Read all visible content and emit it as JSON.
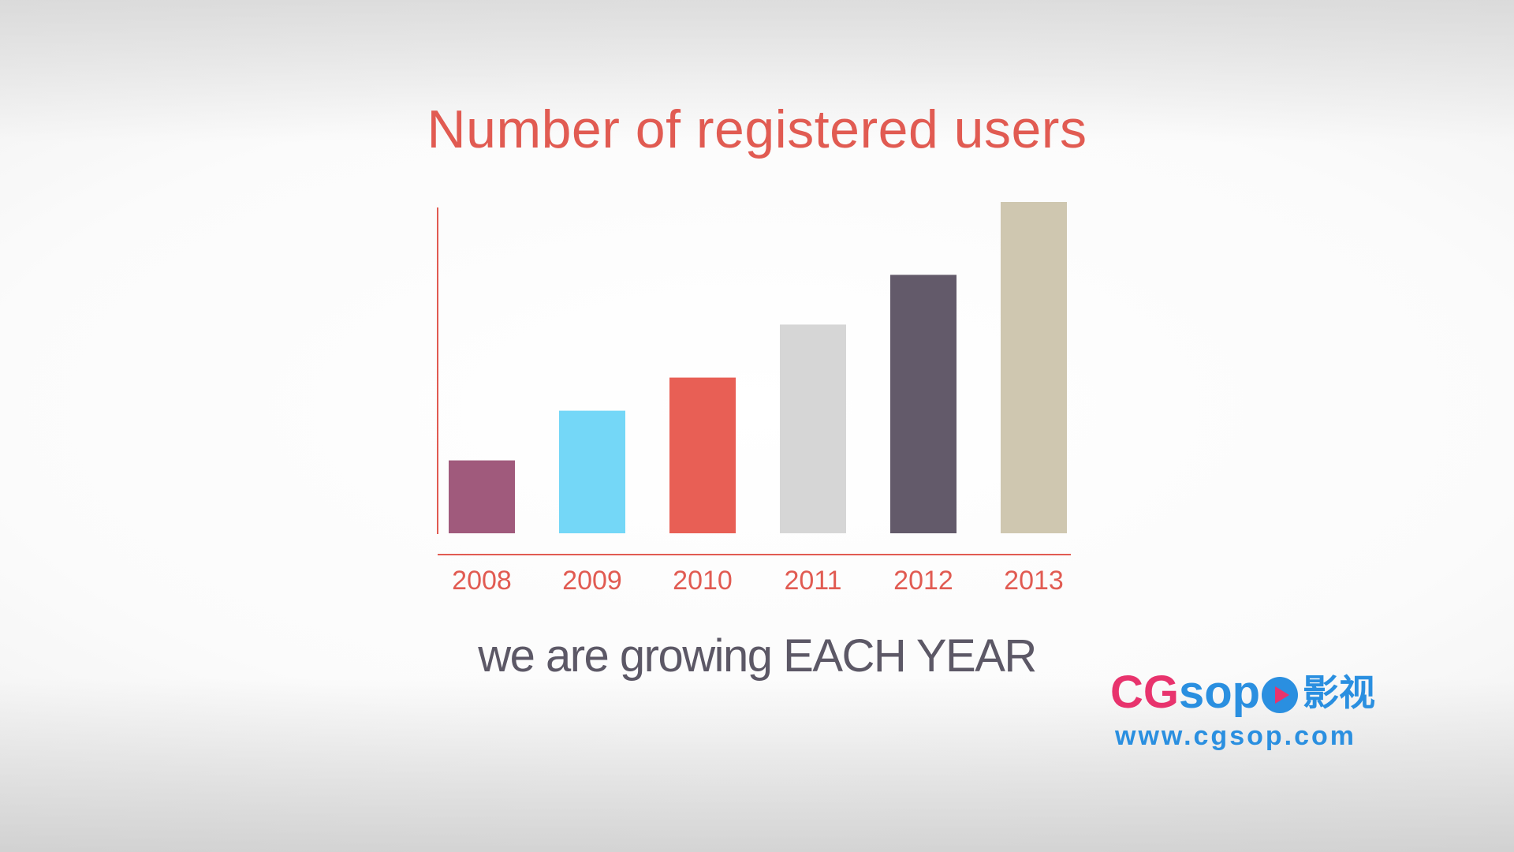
{
  "chart_data": {
    "type": "bar",
    "title": "Number of registered users",
    "categories": [
      "2008",
      "2009",
      "2010",
      "2011",
      "2012",
      "2013"
    ],
    "values": [
      22,
      37,
      47,
      63,
      78,
      100
    ],
    "colors": [
      "#a05a7c",
      "#74d7f7",
      "#e85f55",
      "#d6d6d6",
      "#635a6a",
      "#cfc7b0"
    ],
    "axis_color": "#e15b52",
    "ylim": [
      0,
      100
    ],
    "grid": false,
    "legend": "none",
    "xlabel": "",
    "ylabel": ""
  },
  "subtitle": "we are growing EACH YEAR",
  "watermark": {
    "brand_part1": "CG",
    "brand_part2": "sop",
    "brand_cn": "影视",
    "url": "www.cgsop.com",
    "icon": "play-icon"
  }
}
